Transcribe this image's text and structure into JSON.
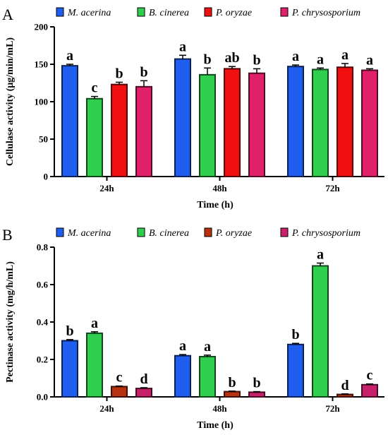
{
  "chart_data": [
    {
      "panel": "A",
      "type": "bar",
      "xlabel": "Time (h)",
      "ylabel": "Cellulase activity (μg/min/mL)",
      "ylim": [
        0,
        200
      ],
      "yticks": [
        "0",
        "50",
        "100",
        "150",
        "200"
      ],
      "categories": [
        "24h",
        "48h",
        "72h"
      ],
      "legend_position": "top",
      "series": [
        {
          "name": "M. acerina",
          "color": "#1f5ef0",
          "values": [
            148,
            157,
            147
          ],
          "errors": [
            2,
            5,
            2
          ],
          "labels": [
            "a",
            "a",
            "a"
          ]
        },
        {
          "name": "B. cinerea",
          "color": "#2fce4e",
          "values": [
            104,
            136,
            143
          ],
          "errors": [
            3,
            9,
            2
          ],
          "labels": [
            "c",
            "b",
            "a"
          ]
        },
        {
          "name": "P. oryzae",
          "color": "#f01010",
          "values": [
            123,
            144,
            146
          ],
          "errors": [
            3,
            3,
            5
          ],
          "labels": [
            "b",
            "ab",
            "a"
          ]
        },
        {
          "name": "P. chrysosporium",
          "color": "#e0206a",
          "values": [
            120,
            138,
            142
          ],
          "errors": [
            8,
            6,
            2
          ],
          "labels": [
            "b",
            "b",
            "a"
          ]
        }
      ]
    },
    {
      "panel": "B",
      "type": "bar",
      "xlabel": "Time (h)",
      "ylabel": "Pectinase activity (mg/h/mL)",
      "ylim": [
        0,
        0.8
      ],
      "yticks": [
        "0.0",
        "0.2",
        "0.4",
        "0.6",
        "0.8"
      ],
      "categories": [
        "24h",
        "48h",
        "72h"
      ],
      "legend_position": "top",
      "series": [
        {
          "name": "M. acerina",
          "color": "#1f5ef0",
          "values": [
            0.3,
            0.22,
            0.28
          ],
          "errors": [
            0.006,
            0.006,
            0.006
          ],
          "labels": [
            "b",
            "a",
            "b"
          ]
        },
        {
          "name": "B. cinerea",
          "color": "#2fce4e",
          "values": [
            0.34,
            0.215,
            0.7
          ],
          "errors": [
            0.008,
            0.008,
            0.015
          ],
          "labels": [
            "a",
            "a",
            "a"
          ]
        },
        {
          "name": "P. oryzae",
          "color": "#b83210",
          "values": [
            0.055,
            0.028,
            0.013
          ],
          "errors": [
            0.003,
            0.003,
            0.003
          ],
          "labels": [
            "c",
            "b",
            "d"
          ]
        },
        {
          "name": "P. chrysosporium",
          "color": "#c8206a",
          "values": [
            0.045,
            0.025,
            0.065
          ],
          "errors": [
            0.004,
            0.003,
            0.004
          ],
          "labels": [
            "d",
            "b",
            "c"
          ]
        }
      ]
    }
  ]
}
